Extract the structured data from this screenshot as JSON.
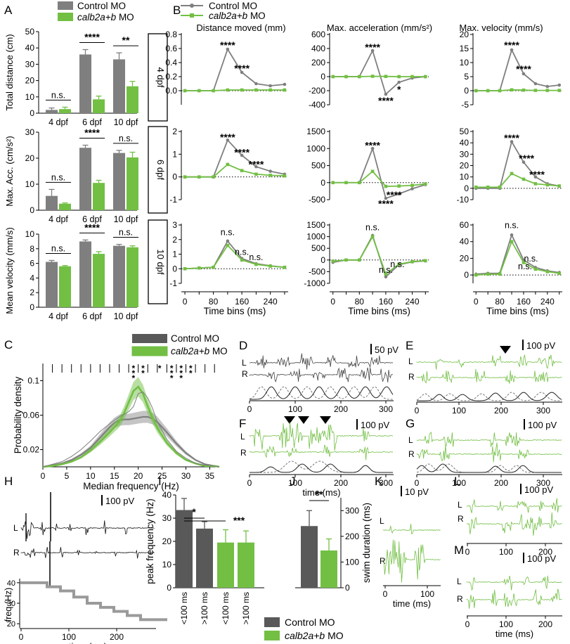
{
  "colors": {
    "control": "#7f7f7f",
    "control_dark": "#595959",
    "mo": "#72bf44",
    "mo_light": "#9fd67a",
    "axis": "#000000"
  },
  "panel_labels": [
    "A",
    "B",
    "C",
    "D",
    "E",
    "F",
    "G",
    "H",
    "I",
    "J",
    "K",
    "L",
    "M"
  ],
  "legend_a": {
    "control": "Control MO",
    "mo": "calb2a+b MO"
  },
  "legend_b": {
    "control": "Control MO",
    "mo": "calb2a+b MO"
  },
  "legend_c": {
    "control": "Control MO",
    "mo": "calb2a+b MO"
  },
  "legend_ij": {
    "control": "Control MO",
    "mo": "calb2a+b MO"
  },
  "chart_data": [
    {
      "id": "A1",
      "type": "bar",
      "ylabel": "Total distance (cm)",
      "ylim": [
        0,
        50
      ],
      "yticks": [
        0,
        10,
        20,
        30,
        40,
        50
      ],
      "categories": [
        "4 dpf",
        "6 dpf",
        "10 dpf"
      ],
      "series": [
        {
          "name": "Control MO",
          "values": [
            2,
            36,
            33
          ],
          "errors": [
            1.2,
            3,
            4
          ]
        },
        {
          "name": "calb2a+b MO",
          "values": [
            2.5,
            8.5,
            16.5
          ],
          "errors": [
            1.2,
            2,
            3
          ]
        }
      ],
      "annotations": [
        "n.s.",
        "****",
        "**"
      ]
    },
    {
      "id": "A2",
      "type": "bar",
      "ylabel": "Max. Acc. (cm/s²)",
      "ylim": [
        0,
        30
      ],
      "yticks": [
        0,
        10,
        20,
        30
      ],
      "categories": [
        "4 dpf",
        "6 dpf",
        "10 dpf"
      ],
      "series": [
        {
          "name": "Control MO",
          "values": [
            5.5,
            24,
            22
          ],
          "errors": [
            2.5,
            1,
            1
          ]
        },
        {
          "name": "calb2a+b MO",
          "values": [
            2.5,
            10.5,
            20.3
          ],
          "errors": [
            0.3,
            1,
            2
          ]
        }
      ],
      "annotations": [
        "n.s.",
        "****",
        "n.s."
      ]
    },
    {
      "id": "A3",
      "type": "bar",
      "ylabel": "Mean velocity (mm/s)",
      "ylim": [
        0,
        10
      ],
      "yticks": [
        0,
        2,
        4,
        6,
        8,
        10
      ],
      "categories": [
        "4 dpf",
        "6 dpf",
        "10 dpf"
      ],
      "series": [
        {
          "name": "Control MO",
          "values": [
            6.2,
            9.0,
            8.4
          ],
          "errors": [
            0.2,
            0.2,
            0.2
          ]
        },
        {
          "name": "calb2a+b MO",
          "values": [
            5.6,
            7.3,
            8.2
          ],
          "errors": [
            0.1,
            0.3,
            0.2
          ]
        }
      ],
      "annotations": [
        "n.s.",
        "****",
        "n.s."
      ]
    },
    {
      "id": "B",
      "type": "line",
      "xlabel": "Time bins (ms)",
      "x": [
        0,
        40,
        80,
        120,
        160,
        200,
        240,
        280
      ],
      "xticks": [
        0,
        80,
        160,
        240
      ],
      "xtick_labels": [
        "0",
        "80",
        "160",
        "240"
      ],
      "extra_xtick_labels": [
        "40",
        "120",
        "200"
      ],
      "row_labels": [
        "4 dpf",
        "6 dpf",
        "10 dpf"
      ],
      "column_titles": [
        "Distance moved (mm)",
        "Max. acceleration (mm/s²)",
        "Max. velocity (mm/s)"
      ],
      "panels": [
        {
          "row": 0,
          "col": 0,
          "ylim": [
            -0.2,
            0.8
          ],
          "yticks": [
            0,
            0.2,
            0.4,
            0.6,
            0.8
          ],
          "ytick_labels": [
            "0.0",
            "0.2",
            "0.4",
            "0.6",
            "0.8"
          ],
          "control": [
            0,
            0,
            0,
            0.59,
            0.26,
            0.1,
            0.07,
            0.09
          ],
          "mo": [
            0,
            0,
            0,
            0.01,
            0.01,
            0.01,
            0.01,
            0.01
          ],
          "stars": [
            {
              "x": 120,
              "y": 0.66,
              "t": "****"
            },
            {
              "x": 160,
              "y": 0.33,
              "t": "****"
            }
          ]
        },
        {
          "row": 0,
          "col": 1,
          "ylim": [
            -400,
            600
          ],
          "yticks": [
            -400,
            -200,
            0,
            200,
            400,
            600
          ],
          "ytick_labels": [
            "-400",
            "-200",
            "0",
            "200",
            "400",
            "600"
          ],
          "control": [
            0,
            0,
            0,
            370,
            -250,
            -80,
            -20,
            0
          ],
          "mo": [
            0,
            0,
            0,
            5,
            3,
            0,
            0,
            0
          ],
          "stars": [
            {
              "x": 120,
              "y": 430,
              "t": "****"
            },
            {
              "x": 160,
              "y": -330,
              "t": "****"
            },
            {
              "x": 200,
              "y": -170,
              "t": "*"
            }
          ]
        },
        {
          "row": 0,
          "col": 2,
          "ylim": [
            -5,
            20
          ],
          "yticks": [
            -5,
            0,
            5,
            10,
            15,
            20
          ],
          "ytick_labels": [
            "-5",
            "0",
            "5",
            "10",
            "15",
            "20"
          ],
          "control": [
            0,
            0,
            0,
            14.5,
            6,
            2.5,
            1.5,
            2
          ],
          "mo": [
            0,
            0,
            0,
            0.3,
            0.2,
            0.1,
            0.1,
            0.1
          ],
          "stars": [
            {
              "x": 120,
              "y": 16.5,
              "t": "****"
            },
            {
              "x": 160,
              "y": 8,
              "t": "****"
            }
          ]
        },
        {
          "row": 1,
          "col": 0,
          "ylim": [
            -1,
            2
          ],
          "yticks": [
            -1,
            0,
            1,
            2
          ],
          "ytick_labels": [
            "-1",
            "0",
            "1",
            "2"
          ],
          "control": [
            0,
            0,
            0,
            1.62,
            0.95,
            0.45,
            0.25,
            0.12
          ],
          "mo": [
            0,
            0,
            0,
            0.55,
            0.28,
            0.12,
            0.07,
            0.05
          ],
          "stars": [
            {
              "x": 120,
              "y": 1.78,
              "t": "****"
            },
            {
              "x": 160,
              "y": 1.12,
              "t": "****"
            },
            {
              "x": 200,
              "y": 0.6,
              "t": "****"
            }
          ]
        },
        {
          "row": 1,
          "col": 1,
          "ylim": [
            -500,
            1500
          ],
          "yticks": [
            -500,
            0,
            500,
            1000,
            1500
          ],
          "ytick_labels": [
            "-500",
            "0",
            "500",
            "1000",
            "1500"
          ],
          "control": [
            0,
            0,
            0,
            1000,
            -460,
            -330,
            -180,
            -60
          ],
          "mo": [
            0,
            0,
            0,
            330,
            -110,
            -100,
            -80,
            -40
          ],
          "stars": [
            {
              "x": 120,
              "y": 1120,
              "t": "****"
            },
            {
              "x": 185,
              "y": -340,
              "t": "****"
            },
            {
              "x": 160,
              "y": -590,
              "t": "****"
            }
          ]
        },
        {
          "row": 1,
          "col": 2,
          "ylim": [
            -10,
            50
          ],
          "yticks": [
            -10,
            0,
            10,
            20,
            30,
            40,
            50
          ],
          "ytick_labels": [
            "-10",
            "0",
            "10",
            "20",
            "30",
            "40",
            "50"
          ],
          "control": [
            0,
            0,
            0,
            41,
            23,
            10,
            4,
            2
          ],
          "mo": [
            1,
            1,
            1,
            13,
            8,
            4,
            3,
            2
          ],
          "stars": [
            {
              "x": 120,
              "y": 45,
              "t": "****"
            },
            {
              "x": 170,
              "y": 27,
              "t": "****"
            },
            {
              "x": 205,
              "y": 13,
              "t": "****"
            }
          ]
        },
        {
          "row": 2,
          "col": 0,
          "ylim": [
            -1,
            3
          ],
          "yticks": [
            -1,
            0,
            1,
            2,
            3
          ],
          "ytick_labels": [
            "-1",
            "0",
            "1",
            "2",
            "3"
          ],
          "control": [
            0,
            0.05,
            0.1,
            1.9,
            0.7,
            0.35,
            0.2,
            0.1
          ],
          "mo": [
            0,
            0.05,
            0.1,
            1.6,
            0.6,
            0.3,
            0.18,
            0.1
          ],
          "stars": [
            {
              "x": 120,
              "y": 2.3,
              "t": "n.s."
            },
            {
              "x": 160,
              "y": 0.95,
              "t": "n.s."
            },
            {
              "x": 200,
              "y": 0.6,
              "t": "n.s."
            }
          ]
        },
        {
          "row": 2,
          "col": 1,
          "ylim": [
            -1000,
            1500
          ],
          "yticks": [
            -1000,
            -500,
            0,
            500,
            1000,
            1500
          ],
          "ytick_labels": [
            "-1000",
            "-500",
            "0",
            "500",
            "1000",
            "1500"
          ],
          "control": [
            -100,
            0,
            0,
            1050,
            -720,
            -200,
            -80,
            -40
          ],
          "mo": [
            -50,
            0,
            0,
            1000,
            -600,
            -180,
            -70,
            -30
          ],
          "stars": [
            {
              "x": 120,
              "y": 1270,
              "t": "n.s."
            },
            {
              "x": 160,
              "y": -550,
              "t": "n.s."
            },
            {
              "x": 195,
              "y": -300,
              "t": "n.s."
            }
          ]
        },
        {
          "row": 2,
          "col": 2,
          "ylim": [
            -10,
            60
          ],
          "yticks": [
            0,
            20,
            40,
            60
          ],
          "ytick_labels": [
            "0",
            "20",
            "40",
            "60"
          ],
          "control": [
            1,
            2,
            2,
            48,
            18,
            9,
            5,
            3
          ],
          "mo": [
            0,
            1,
            1,
            40,
            15,
            7,
            4,
            2
          ],
          "stars": [
            {
              "x": 120,
              "y": 56,
              "t": "n.s."
            },
            {
              "x": 185,
              "y": 16,
              "t": "n.s."
            },
            {
              "x": 165,
              "y": 7,
              "t": "n.s."
            }
          ]
        }
      ]
    },
    {
      "id": "C",
      "type": "line",
      "xlabel": "Median frequency (Hz)",
      "ylabel": "Probability density",
      "xlim": [
        0,
        37
      ],
      "xticks": [
        0,
        5,
        10,
        15,
        20,
        25,
        30,
        35
      ],
      "ylim": [
        0,
        0.12
      ],
      "yticks": [
        0.02,
        0.06,
        0.1
      ],
      "x": [
        0,
        2,
        4,
        6,
        8,
        10,
        12,
        14,
        15,
        16,
        17,
        18,
        19,
        20,
        21,
        22,
        23,
        24,
        26,
        28,
        30,
        32,
        34,
        36,
        37
      ],
      "series": [
        {
          "name": "Control MO",
          "values": [
            0,
            0.002,
            0.004,
            0.008,
            0.014,
            0.022,
            0.034,
            0.046,
            0.051,
            0.054,
            0.055,
            0.055,
            0.056,
            0.057,
            0.058,
            0.058,
            0.056,
            0.052,
            0.04,
            0.027,
            0.016,
            0.008,
            0.003,
            0.001,
            0
          ]
        },
        {
          "name": "calb2a+b MO",
          "values": [
            0,
            0.001,
            0.003,
            0.006,
            0.011,
            0.019,
            0.029,
            0.04,
            0.046,
            0.052,
            0.062,
            0.075,
            0.088,
            0.093,
            0.085,
            0.07,
            0.057,
            0.045,
            0.028,
            0.016,
            0.008,
            0.004,
            0.001,
            0.001,
            0
          ]
        }
      ],
      "significance_markers": [
        "***",
        "**",
        "*",
        "***",
        "***",
        "**"
      ]
    },
    {
      "id": "I",
      "type": "bar",
      "ylabel": "peak frequency (Hz)",
      "ylim": [
        0,
        40
      ],
      "yticks": [
        0,
        10,
        20,
        30,
        40
      ],
      "categories": [
        "<100 ms",
        ">100 ms",
        "<100 ms",
        ">100 ms"
      ],
      "values": [
        33.5,
        25.5,
        19.5,
        19.5
      ],
      "errors": [
        5,
        3,
        5.5,
        5
      ],
      "groups": [
        "Control MO",
        "Control MO",
        "calb2a+b MO",
        "calb2a+b MO"
      ],
      "annotations": [
        "*",
        "***"
      ]
    },
    {
      "id": "J",
      "type": "bar",
      "ylabel": "swim duration (ms)",
      "ylim": [
        0,
        350
      ],
      "yticks": [
        0,
        100,
        200,
        300
      ],
      "categories": [
        "Control MO",
        "calb2a+b MO"
      ],
      "values": [
        240,
        145
      ],
      "errors": [
        60,
        45
      ],
      "annotations": [
        "**"
      ]
    }
  ],
  "traces": {
    "D": {
      "scale": "50 pV",
      "labels": [
        "L",
        "R"
      ],
      "xlabel": "",
      "xticks": [
        "0",
        "100",
        "200",
        "300"
      ]
    },
    "E": {
      "scale": "100 pV",
      "labels": [
        "L",
        "R"
      ],
      "xlabel": "",
      "xticks": [
        "0",
        "100",
        "200",
        "300"
      ]
    },
    "F": {
      "scale": "100 pV",
      "labels": [
        "L",
        "R"
      ],
      "xlabel": "time (ms)",
      "xticks": [
        "0",
        "100",
        "200",
        "300"
      ]
    },
    "G": {
      "scale": "100 pV",
      "labels": [
        "L",
        "R"
      ],
      "xlabel": "",
      "xticks": [
        "0",
        "100",
        "200",
        "300"
      ]
    },
    "H": {
      "scale": "100 pV",
      "labels": [
        "L",
        "R"
      ],
      "ylabel": "freq.(Hz)",
      "xlabel": "time (ms)",
      "xticks": [
        "0",
        "100",
        "200"
      ],
      "yticks": [
        "20",
        "30",
        "40"
      ],
      "freq_steps": [
        40,
        40,
        38,
        36,
        33,
        30,
        28,
        26,
        24,
        22,
        22
      ]
    },
    "K": {
      "scale": "10 pV",
      "labels": [
        "L",
        "R"
      ],
      "xlabel": "time (ms)",
      "xticks": [
        "0",
        "100"
      ]
    },
    "L": {
      "scale": "100 pV",
      "labels": [
        "L",
        "R"
      ],
      "xlabel": "",
      "xticks": [
        "0",
        "100",
        "200"
      ]
    },
    "M": {
      "scale": "100 pV",
      "labels": [
        "L",
        "R"
      ],
      "xlabel": "time (ms)",
      "xticks": [
        "0",
        "100",
        "200"
      ]
    }
  }
}
